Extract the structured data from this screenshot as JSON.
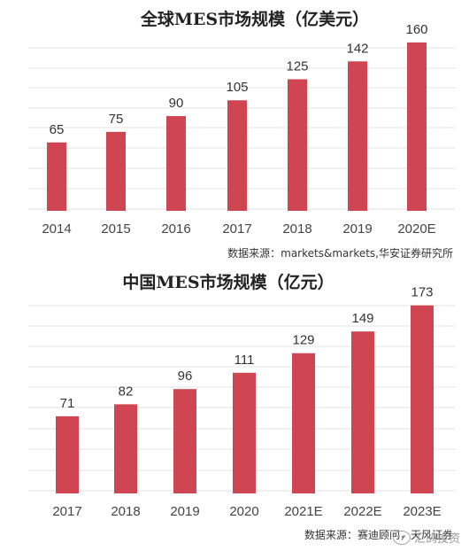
{
  "charts": [
    {
      "type": "bar",
      "title": "全球MES市场规模（亿美元）",
      "categories": [
        "2014",
        "2015",
        "2016",
        "2017",
        "2018",
        "2019",
        "2020E"
      ],
      "values": [
        65,
        75,
        90,
        105,
        125,
        142,
        160
      ],
      "data_labels": [
        "65",
        "75",
        "90",
        "105",
        "125",
        "142",
        "160"
      ],
      "ylim": [
        0,
        170
      ],
      "grid": true,
      "bar_color": "#cf4652",
      "source": "数据来源：markets&markets,华安证券研究所"
    },
    {
      "type": "bar",
      "title": "中国MES市场规模（亿元）",
      "categories": [
        "2017",
        "2018",
        "2019",
        "2020",
        "2021E",
        "2022E",
        "2023E"
      ],
      "values": [
        71,
        82,
        96,
        111,
        129,
        149,
        173
      ],
      "data_labels": [
        "71",
        "82",
        "96",
        "111",
        "129",
        "149",
        "173"
      ],
      "ylim": [
        0,
        185
      ],
      "grid": true,
      "bar_color": "#cf4652",
      "source": "数据来源：赛迪顾问，天风证券"
    }
  ],
  "watermark": {
    "text": "汇鸽投资",
    "icon": "wechat-icon"
  },
  "colors": {
    "grid": "#e3e3e3",
    "axis_text": "#444444",
    "title": "#222222",
    "source": "#333333"
  }
}
